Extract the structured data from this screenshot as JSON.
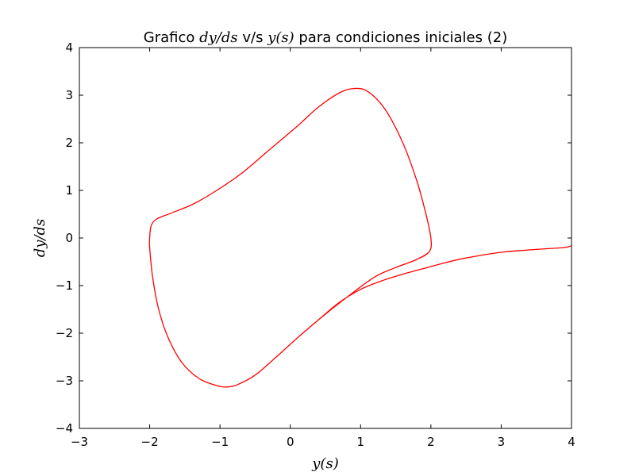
{
  "chart_data": {
    "type": "line",
    "title": {
      "prefix": "Grafico ",
      "y_expr": "dy/ds",
      "middle": " v/s ",
      "x_expr": "y(s)",
      "suffix": " para condiciones iniciales (2)"
    },
    "xlabel": "y(s)",
    "ylabel": "dy/ds",
    "xlim": [
      -3,
      4
    ],
    "ylim": [
      -4,
      4
    ],
    "xticks": [
      -3,
      -2,
      -1,
      0,
      1,
      2,
      3,
      4
    ],
    "yticks": [
      -4,
      -3,
      -2,
      -1,
      0,
      1,
      2,
      3,
      4
    ],
    "xtick_labels": [
      "−3",
      "−2",
      "−1",
      "0",
      "1",
      "2",
      "3",
      "4"
    ],
    "ytick_labels": [
      "−4",
      "−3",
      "−2",
      "−1",
      "0",
      "1",
      "2",
      "3",
      "4"
    ],
    "grid": false,
    "legend": "none",
    "series": [
      {
        "color": "#ff0000",
        "points": [
          [
            4.0,
            -0.16
          ],
          [
            3.9,
            -0.2
          ],
          [
            3.5,
            -0.24
          ],
          [
            3.0,
            -0.3
          ],
          [
            2.5,
            -0.42
          ],
          [
            2.2,
            -0.52
          ],
          [
            1.9,
            -0.64
          ],
          [
            1.6,
            -0.76
          ],
          [
            1.3,
            -0.9
          ],
          [
            1.0,
            -1.08
          ],
          [
            0.7,
            -1.35
          ],
          [
            0.4,
            -1.72
          ],
          [
            0.1,
            -2.1
          ],
          [
            -0.2,
            -2.5
          ],
          [
            -0.5,
            -2.88
          ],
          [
            -0.75,
            -3.08
          ],
          [
            -0.9,
            -3.13
          ],
          [
            -1.05,
            -3.1
          ],
          [
            -1.3,
            -2.95
          ],
          [
            -1.55,
            -2.6
          ],
          [
            -1.75,
            -2.05
          ],
          [
            -1.88,
            -1.45
          ],
          [
            -1.96,
            -0.8
          ],
          [
            -2.0,
            -0.2
          ],
          [
            -2.0,
            0.0
          ],
          [
            -1.98,
            0.25
          ],
          [
            -1.9,
            0.4
          ],
          [
            -1.7,
            0.52
          ],
          [
            -1.4,
            0.7
          ],
          [
            -1.1,
            0.95
          ],
          [
            -0.7,
            1.35
          ],
          [
            -0.3,
            1.85
          ],
          [
            0.1,
            2.35
          ],
          [
            0.4,
            2.75
          ],
          [
            0.7,
            3.05
          ],
          [
            0.9,
            3.14
          ],
          [
            1.1,
            3.08
          ],
          [
            1.35,
            2.7
          ],
          [
            1.6,
            2.0
          ],
          [
            1.8,
            1.2
          ],
          [
            1.93,
            0.5
          ],
          [
            2.0,
            0.0
          ],
          [
            1.98,
            -0.28
          ],
          [
            1.8,
            -0.45
          ],
          [
            1.5,
            -0.62
          ],
          [
            1.2,
            -0.82
          ],
          [
            0.8,
            -1.25
          ],
          [
            0.4,
            -1.72
          ],
          [
            0.1,
            -2.1
          ],
          [
            -0.2,
            -2.5
          ],
          [
            -0.5,
            -2.88
          ],
          [
            -0.75,
            -3.08
          ],
          [
            -0.9,
            -3.13
          ],
          [
            -1.05,
            -3.1
          ],
          [
            -1.3,
            -2.95
          ],
          [
            -1.55,
            -2.6
          ],
          [
            -1.75,
            -2.05
          ],
          [
            -1.88,
            -1.45
          ],
          [
            -1.96,
            -0.8
          ],
          [
            -2.0,
            -0.2
          ],
          [
            -2.0,
            0.0
          ],
          [
            -1.98,
            0.25
          ],
          [
            -1.9,
            0.4
          ],
          [
            -1.7,
            0.52
          ],
          [
            -1.4,
            0.7
          ],
          [
            -1.1,
            0.95
          ],
          [
            -0.7,
            1.35
          ],
          [
            -0.3,
            1.85
          ],
          [
            0.1,
            2.35
          ],
          [
            0.4,
            2.75
          ],
          [
            0.7,
            3.05
          ],
          [
            0.9,
            3.14
          ],
          [
            1.1,
            3.08
          ],
          [
            1.35,
            2.7
          ],
          [
            1.6,
            2.0
          ],
          [
            1.8,
            1.2
          ],
          [
            1.93,
            0.5
          ],
          [
            2.0,
            0.0
          ],
          [
            1.98,
            -0.28
          ],
          [
            1.8,
            -0.45
          ]
        ]
      }
    ]
  }
}
